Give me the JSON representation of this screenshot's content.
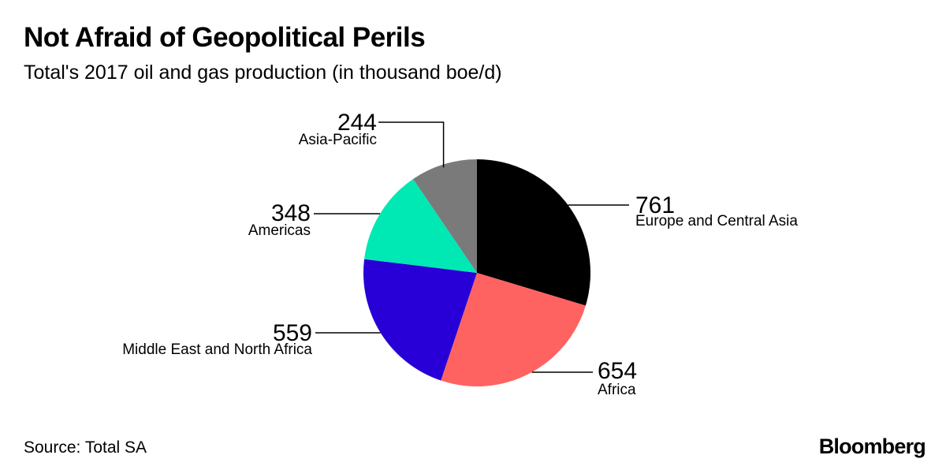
{
  "header": {
    "title": "Not Afraid of Geopolitical Perils",
    "subtitle": "Total's 2017 oil and gas production (in thousand boe/d)"
  },
  "footer": {
    "source": "Source: Total SA",
    "brand": "Bloomberg"
  },
  "chart_data": {
    "type": "pie",
    "title": "Not Afraid of Geopolitical Perils",
    "subtitle": "Total's 2017 oil and gas production (in thousand boe/d)",
    "start": "12 o'clock",
    "direction": "clockwise",
    "slices": [
      {
        "label": "Europe and Central Asia",
        "value": 761,
        "color": "#000000"
      },
      {
        "label": "Africa",
        "value": 654,
        "color": "#ff6361"
      },
      {
        "label": "Middle East and North Africa",
        "value": 559,
        "color": "#2800d7"
      },
      {
        "label": "Americas",
        "value": 348,
        "color": "#00e8b4"
      },
      {
        "label": "Asia-Pacific",
        "value": 244,
        "color": "#7a7a7a"
      }
    ]
  }
}
